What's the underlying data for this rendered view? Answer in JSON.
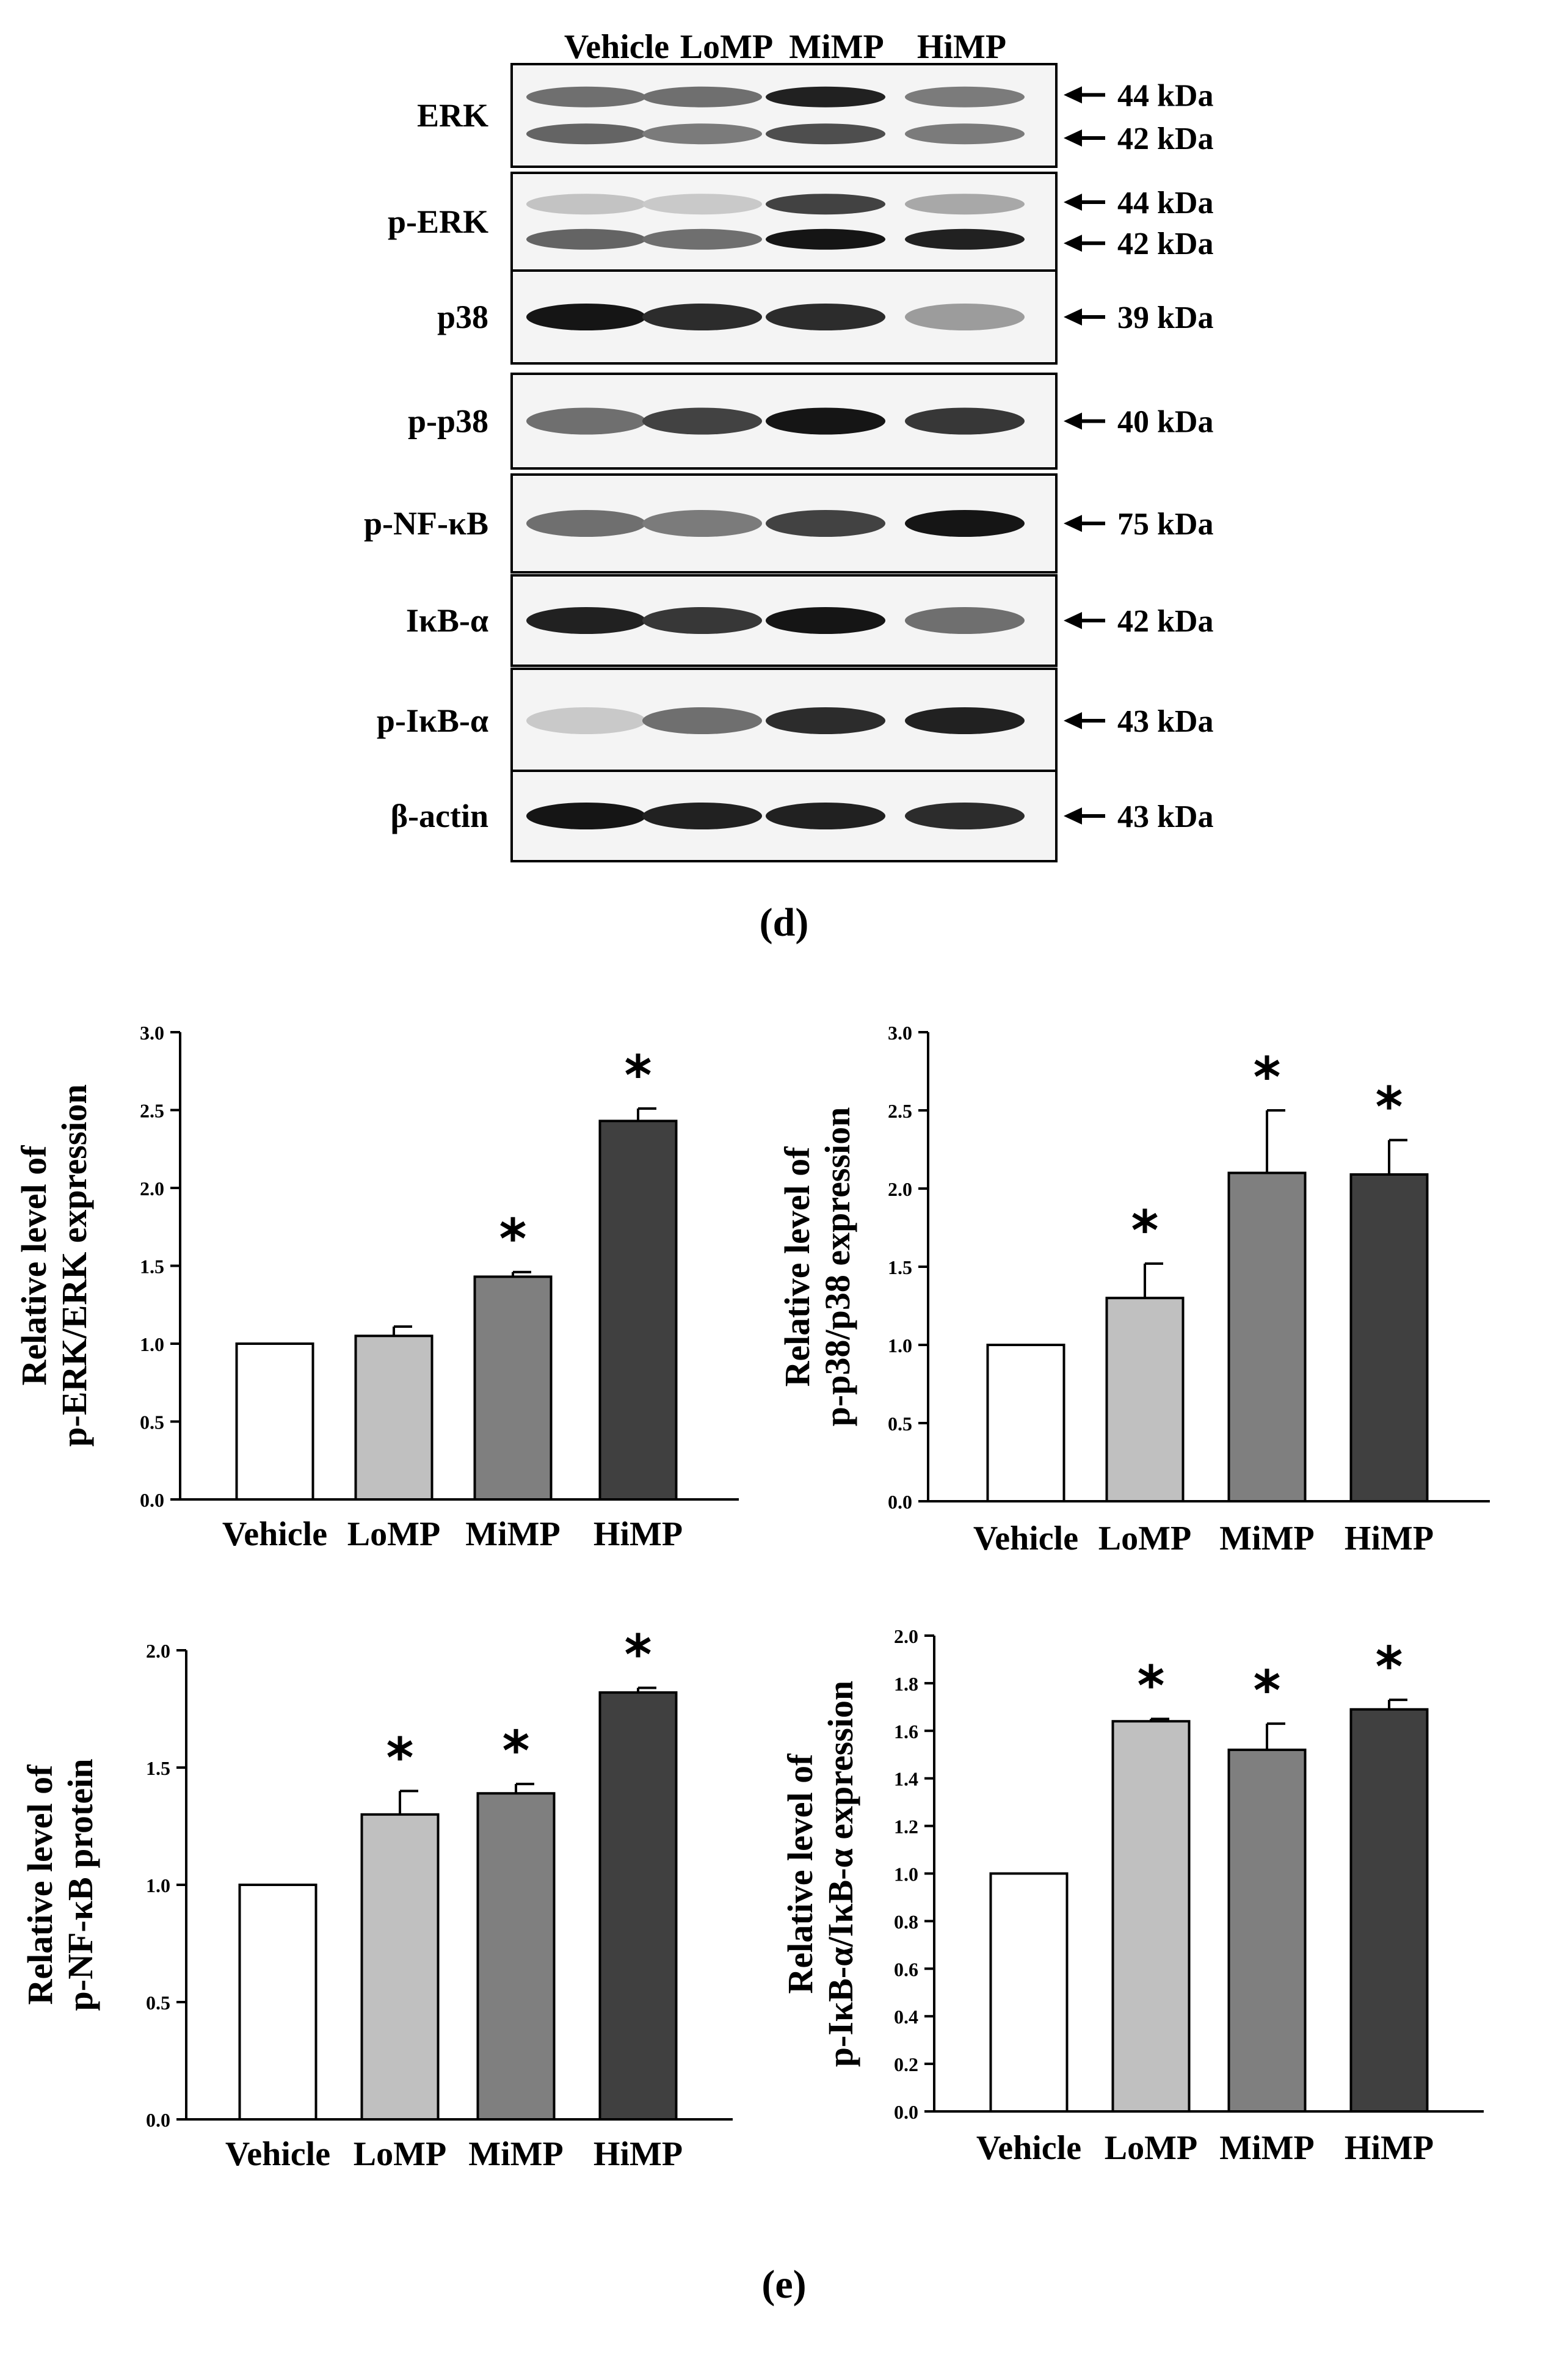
{
  "blot": {
    "lanes": [
      "Vehicle",
      "LoMP",
      "MiMP",
      "HiMP"
    ],
    "panels": [
      {
        "label": "ERK",
        "markers": [
          "44 kDa",
          "42 kDa"
        ],
        "bands": [
          [
            0.55,
            0.55,
            0.9,
            0.5
          ],
          [
            0.6,
            0.5,
            0.7,
            0.5
          ]
        ]
      },
      {
        "label": "p-ERK",
        "markers": [
          "44 kDa",
          "42 kDa"
        ],
        "bands": [
          [
            0.18,
            0.15,
            0.75,
            0.3
          ],
          [
            0.6,
            0.55,
            0.95,
            0.9
          ]
        ]
      },
      {
        "label": "p38",
        "markers": [
          "39 kDa"
        ],
        "bands": [
          [
            0.95,
            0.85,
            0.85,
            0.35
          ]
        ]
      },
      {
        "label": "p-p38",
        "markers": [
          "40 kDa"
        ],
        "bands": [
          [
            0.55,
            0.75,
            0.95,
            0.8
          ]
        ]
      },
      {
        "label": "p-NF-κB",
        "markers": [
          "75 kDa"
        ],
        "bands": [
          [
            0.55,
            0.5,
            0.75,
            0.95
          ]
        ]
      },
      {
        "label": "IκB-α",
        "markers": [
          "42 kDa"
        ],
        "bands": [
          [
            0.9,
            0.8,
            0.95,
            0.55
          ]
        ]
      },
      {
        "label": "p-IκB-α",
        "markers": [
          "43 kDa"
        ],
        "bands": [
          [
            0.15,
            0.55,
            0.85,
            0.9
          ]
        ]
      },
      {
        "label": "β-actin",
        "markers": [
          "43 kDa"
        ],
        "bands": [
          [
            0.95,
            0.9,
            0.9,
            0.85
          ]
        ]
      }
    ],
    "panel_caption": "(d)"
  },
  "figure_caption": "(e)",
  "chart_data": [
    {
      "type": "bar",
      "categories": [
        "Vehicle",
        "LoMP",
        "MiMP",
        "HiMP"
      ],
      "values": [
        1.0,
        1.05,
        1.43,
        2.43
      ],
      "errors": [
        0,
        0.06,
        0.03,
        0.08
      ],
      "significant": [
        false,
        false,
        true,
        true
      ],
      "ylabel_line1": "Relative level of",
      "ylabel_line2": "p-ERK/ERK expression",
      "ylim": [
        0,
        3.0
      ],
      "yticks": [
        "0.0",
        "0.5",
        "1.0",
        "1.5",
        "2.0",
        "2.5",
        "3.0"
      ],
      "bar_colors": [
        "#ffffff",
        "#c0c0c0",
        "#7f7f7f",
        "#404040"
      ]
    },
    {
      "type": "bar",
      "categories": [
        "Vehicle",
        "LoMP",
        "MiMP",
        "HiMP"
      ],
      "values": [
        1.0,
        1.3,
        2.1,
        2.09
      ],
      "errors": [
        0,
        0.22,
        0.4,
        0.22
      ],
      "significant": [
        false,
        true,
        true,
        true
      ],
      "ylabel_line1": "Relative level of",
      "ylabel_line2": "p-p38/p38 expression",
      "ylim": [
        0,
        3.0
      ],
      "yticks": [
        "0.0",
        "0.5",
        "1.0",
        "1.5",
        "2.0",
        "2.5",
        "3.0"
      ],
      "bar_colors": [
        "#ffffff",
        "#c0c0c0",
        "#7f7f7f",
        "#404040"
      ]
    },
    {
      "type": "bar",
      "categories": [
        "Vehicle",
        "LoMP",
        "MiMP",
        "HiMP"
      ],
      "values": [
        1.0,
        1.3,
        1.39,
        1.82
      ],
      "errors": [
        0,
        0.1,
        0.04,
        0.02
      ],
      "significant": [
        false,
        true,
        true,
        true
      ],
      "ylabel_line1": "Relative level of",
      "ylabel_line2": "p-NF-κB protein",
      "ylim": [
        0,
        2.0
      ],
      "yticks": [
        "0.0",
        "0.5",
        "1.0",
        "1.5",
        "2.0"
      ],
      "bar_colors": [
        "#ffffff",
        "#c0c0c0",
        "#7f7f7f",
        "#404040"
      ]
    },
    {
      "type": "bar",
      "categories": [
        "Vehicle",
        "LoMP",
        "MiMP",
        "HiMP"
      ],
      "values": [
        1.0,
        1.64,
        1.52,
        1.69
      ],
      "errors": [
        0,
        0.01,
        0.11,
        0.04
      ],
      "significant": [
        false,
        true,
        true,
        true
      ],
      "ylabel_line1": "Relative level of",
      "ylabel_line2": "p-IκB-α/IκB-α expression",
      "ylim": [
        0,
        2.0
      ],
      "yticks": [
        "0.0",
        "0.2",
        "0.4",
        "0.6",
        "0.8",
        "1.0",
        "1.2",
        "1.4",
        "1.6",
        "1.8",
        "2.0"
      ],
      "bar_colors": [
        "#ffffff",
        "#c0c0c0",
        "#7f7f7f",
        "#404040"
      ]
    }
  ]
}
